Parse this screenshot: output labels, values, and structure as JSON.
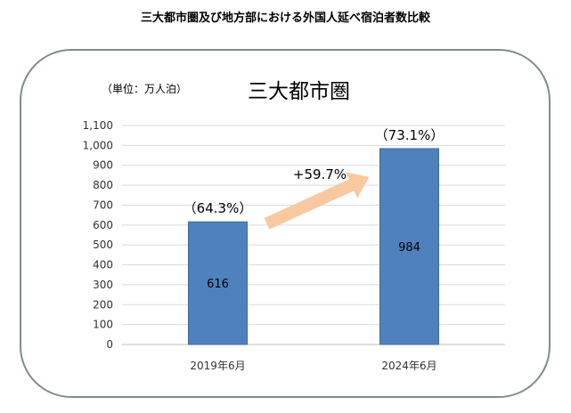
{
  "page": {
    "title": "三大都市圏及び地方部における外国人延べ宿泊者数比較"
  },
  "chart_data": {
    "type": "bar",
    "title": "三大都市圏",
    "unit_label": "（単位：万人泊）",
    "categories": [
      "2019年6月",
      "2024年6月"
    ],
    "values": [
      616,
      984
    ],
    "value_labels": [
      "616",
      "984"
    ],
    "share_labels": [
      "（64.3%）",
      "（73.1%）"
    ],
    "ylim": [
      0,
      1100
    ],
    "yticks": [
      "0",
      "100",
      "200",
      "300",
      "400",
      "500",
      "600",
      "700",
      "800",
      "900",
      "1,000",
      "1,100"
    ],
    "grid": true,
    "annotation": "+59.7%",
    "colors": {
      "bar": "#4f81bd",
      "bar_edge": "#3a6aa3",
      "grid": "#d9d9d9",
      "arrow": "#f8c9a0",
      "frame": "#7f8c8d"
    }
  }
}
